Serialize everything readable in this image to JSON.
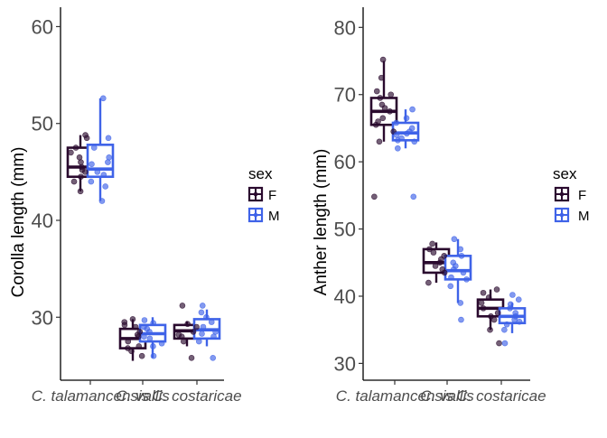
{
  "chart_data": [
    {
      "type": "boxplot",
      "ylabel": "Corolla length (mm)",
      "xlabel": "",
      "categories": [
        "C. talamancensis",
        "C. vallis",
        "C. costaricae"
      ],
      "y_ticks": [
        30,
        40,
        50,
        60
      ],
      "ylim": [
        23.5,
        62
      ],
      "legend": {
        "title": "sex",
        "entries": [
          "F",
          "M"
        ],
        "placement": "right"
      },
      "series": [
        {
          "name": "F",
          "color": "#2a0a2e",
          "boxes": [
            {
              "min": 43.0,
              "q1": 44.5,
              "median": 45.5,
              "q3": 47.5,
              "max": 48.8
            },
            {
              "min": 25.5,
              "q1": 26.8,
              "median": 27.8,
              "q3": 28.8,
              "max": 29.8
            },
            {
              "min": 27.0,
              "q1": 27.8,
              "median": 28.6,
              "q3": 29.2,
              "max": 29.6
            }
          ],
          "points": [
            [
              44.0,
              45.0,
              45.5,
              46.5,
              47.5,
              48.5,
              48.8,
              43.0,
              44.5,
              46.0,
              47.0,
              45.2
            ],
            [
              26.0,
              26.8,
              27.5,
              28.0,
              28.5,
              29.0,
              29.5,
              29.8,
              27.0,
              28.2,
              29.2,
              26.5
            ],
            [
              25.8,
              27.5,
              28.0,
              28.5,
              29.0,
              31.2,
              28.2,
              29.3
            ]
          ]
        },
        {
          "name": "M",
          "color": "#3f63e8",
          "boxes": [
            {
              "min": 42.0,
              "q1": 44.5,
              "median": 45.3,
              "q3": 47.8,
              "max": 52.6
            },
            {
              "min": 25.8,
              "q1": 27.5,
              "median": 28.3,
              "q3": 29.2,
              "max": 30.0
            },
            {
              "min": 27.0,
              "q1": 27.8,
              "median": 28.7,
              "q3": 29.8,
              "max": 30.8
            }
          ],
          "points": [
            [
              42.0,
              44.0,
              45.0,
              46.0,
              47.5,
              48.5,
              52.6,
              43.5,
              45.8,
              44.7,
              46.5
            ],
            [
              26.0,
              27.0,
              27.8,
              28.5,
              29.0,
              29.7,
              27.3,
              28.0,
              28.8,
              29.4
            ],
            [
              25.8,
              27.5,
              28.0,
              28.5,
              29.0,
              30.0,
              30.5,
              31.2,
              28.3,
              29.5
            ]
          ]
        }
      ]
    },
    {
      "type": "boxplot",
      "ylabel": "Anther length (mm)",
      "xlabel": "",
      "categories": [
        "C. talamancensis",
        "C. vallis",
        "C. costaricae"
      ],
      "y_ticks": [
        30,
        40,
        50,
        60,
        70,
        80
      ],
      "ylim": [
        27.5,
        83
      ],
      "legend": {
        "title": "sex",
        "entries": [
          "F",
          "M"
        ],
        "placement": "right"
      },
      "series": [
        {
          "name": "F",
          "color": "#2a0a2e",
          "boxes": [
            {
              "min": 63.0,
              "q1": 65.5,
              "median": 67.5,
              "q3": 69.5,
              "max": 75.0
            },
            {
              "min": 42.0,
              "q1": 43.5,
              "median": 45.0,
              "q3": 47.0,
              "max": 48.0
            },
            {
              "min": 35.0,
              "q1": 37.0,
              "median": 38.2,
              "q3": 39.5,
              "max": 41.0
            }
          ],
          "points": [
            [
              63.0,
              64.5,
              65.5,
              66.5,
              67.5,
              68.5,
              69.5,
              70.5,
              72.5,
              75.2,
              54.8,
              66.0,
              68.0,
              70.0
            ],
            [
              42.0,
              43.5,
              44.5,
              45.0,
              46.0,
              47.0,
              47.8,
              44.0,
              45.5,
              46.5
            ],
            [
              33.0,
              35.0,
              36.5,
              37.5,
              38.2,
              39.0,
              39.8,
              40.5,
              41.0,
              37.0
            ]
          ]
        },
        {
          "name": "M",
          "color": "#3f63e8",
          "boxes": [
            {
              "min": 62.0,
              "q1": 63.2,
              "median": 64.3,
              "q3": 65.8,
              "max": 67.8
            },
            {
              "min": 39.0,
              "q1": 42.5,
              "median": 43.8,
              "q3": 46.0,
              "max": 48.5
            },
            {
              "min": 34.5,
              "q1": 36.0,
              "median": 37.0,
              "q3": 38.2,
              "max": 39.0
            }
          ],
          "points": [
            [
              54.8,
              62.0,
              63.0,
              63.5,
              64.0,
              64.5,
              65.0,
              65.8,
              66.5,
              67.8,
              64.2,
              63.2
            ],
            [
              36.5,
              39.0,
              41.5,
              42.5,
              43.5,
              44.0,
              45.0,
              46.0,
              47.0,
              48.5,
              44.5,
              42.8
            ],
            [
              33.0,
              35.0,
              35.8,
              36.5,
              37.0,
              37.5,
              38.2,
              38.8,
              39.5,
              40.2,
              36.2
            ]
          ]
        }
      ]
    }
  ]
}
